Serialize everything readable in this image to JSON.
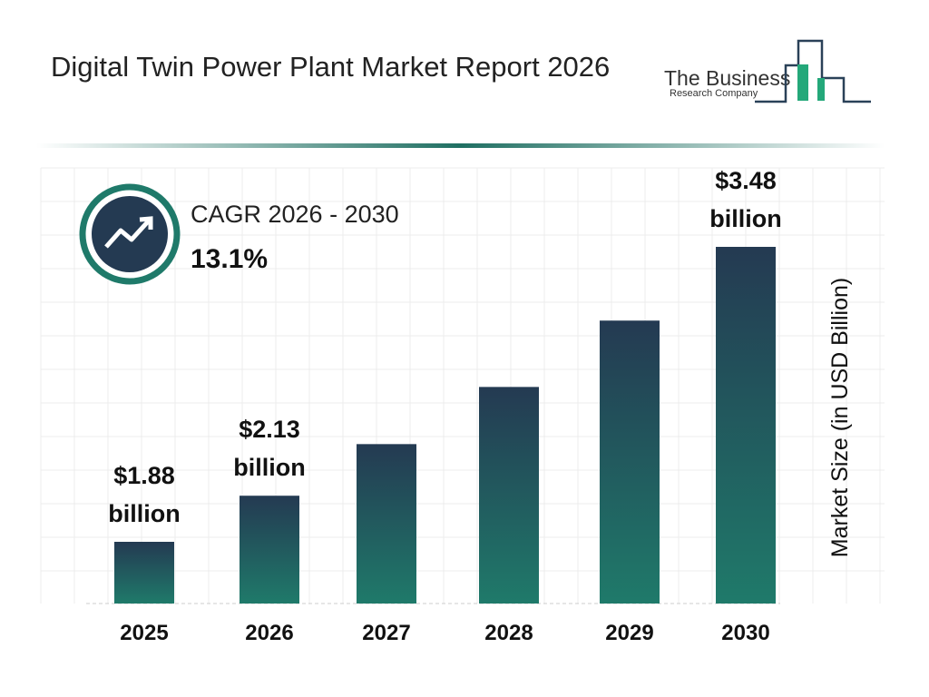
{
  "header": {
    "title": "Digital Twin Power Plant Market Report 2026",
    "logo_line1": "The Business",
    "logo_line2": "Research Company"
  },
  "cagr": {
    "label": "CAGR 2026 - 2030",
    "value": "13.1%"
  },
  "chart_data": {
    "type": "bar",
    "y_axis_label": "Market Size (in USD Billion)",
    "categories": [
      "2025",
      "2026",
      "2027",
      "2028",
      "2029",
      "2030"
    ],
    "values": [
      1.88,
      2.13,
      2.41,
      2.72,
      3.08,
      3.48
    ],
    "value_labels": [
      "$1.88 billion",
      "$2.13 billion",
      null,
      null,
      null,
      "$3.48 billion"
    ],
    "color": [
      "#243a52",
      "#1f7a6a"
    ]
  }
}
